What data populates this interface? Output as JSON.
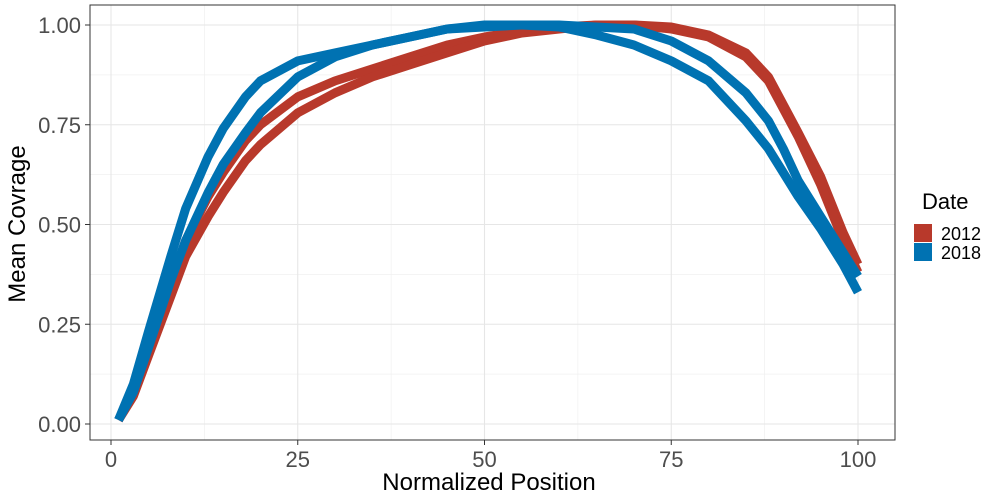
{
  "chart_data": {
    "type": "line",
    "xlabel": "Normalized Position",
    "ylabel": "Mean Covrage",
    "xlim": [
      0,
      100
    ],
    "ylim": [
      0,
      1
    ],
    "xticks": [
      "0",
      "25",
      "50",
      "75",
      "100"
    ],
    "yticks": [
      "0.00",
      "0.25",
      "0.50",
      "0.75",
      "1.00"
    ],
    "grid": true,
    "legend": {
      "title": "Date",
      "placement": "right"
    },
    "series": [
      {
        "name": "2012",
        "color": "#B8392B",
        "lines": [
          {
            "x": [
              1,
              3,
              5,
              8,
              10,
              13,
              15,
              18,
              20,
              25,
              30,
              35,
              40,
              45,
              50,
              55,
              60,
              65,
              70,
              75,
              80,
              85,
              88,
              90,
              92,
              95,
              98,
              100
            ],
            "y": [
              0.01,
              0.08,
              0.18,
              0.35,
              0.46,
              0.57,
              0.63,
              0.71,
              0.75,
              0.82,
              0.86,
              0.89,
              0.92,
              0.95,
              0.97,
              0.985,
              0.995,
              1.0,
              1.0,
              0.995,
              0.975,
              0.93,
              0.87,
              0.8,
              0.73,
              0.62,
              0.48,
              0.4
            ]
          },
          {
            "x": [
              1,
              3,
              5,
              8,
              10,
              13,
              15,
              18,
              20,
              25,
              30,
              35,
              40,
              45,
              50,
              55,
              60,
              65,
              70,
              75,
              80,
              85,
              88,
              90,
              92,
              95,
              98,
              100
            ],
            "y": [
              0.01,
              0.07,
              0.17,
              0.32,
              0.42,
              0.52,
              0.58,
              0.66,
              0.7,
              0.78,
              0.83,
              0.87,
              0.9,
              0.93,
              0.96,
              0.98,
              0.99,
              1.0,
              1.0,
              0.99,
              0.97,
              0.92,
              0.86,
              0.79,
              0.72,
              0.6,
              0.46,
              0.38
            ]
          }
        ]
      },
      {
        "name": "2018",
        "color": "#0072B2",
        "lines": [
          {
            "x": [
              1,
              3,
              5,
              8,
              10,
              13,
              15,
              18,
              20,
              25,
              30,
              35,
              40,
              45,
              50,
              55,
              60,
              65,
              70,
              75,
              80,
              85,
              88,
              90,
              92,
              95,
              98,
              100
            ],
            "y": [
              0.01,
              0.1,
              0.23,
              0.42,
              0.54,
              0.67,
              0.74,
              0.82,
              0.86,
              0.91,
              0.93,
              0.95,
              0.97,
              0.99,
              1.0,
              1.0,
              0.995,
              0.975,
              0.95,
              0.91,
              0.86,
              0.76,
              0.69,
              0.63,
              0.57,
              0.49,
              0.4,
              0.33
            ]
          },
          {
            "x": [
              1,
              3,
              5,
              8,
              10,
              13,
              15,
              18,
              20,
              25,
              30,
              35,
              40,
              45,
              50,
              55,
              60,
              65,
              70,
              75,
              80,
              85,
              88,
              90,
              92,
              95,
              98,
              100
            ],
            "y": [
              0.01,
              0.08,
              0.19,
              0.36,
              0.46,
              0.58,
              0.65,
              0.73,
              0.78,
              0.87,
              0.92,
              0.95,
              0.97,
              0.99,
              0.995,
              1.0,
              1.0,
              0.995,
              0.99,
              0.96,
              0.91,
              0.83,
              0.76,
              0.69,
              0.61,
              0.52,
              0.43,
              0.37
            ]
          }
        ]
      }
    ]
  }
}
